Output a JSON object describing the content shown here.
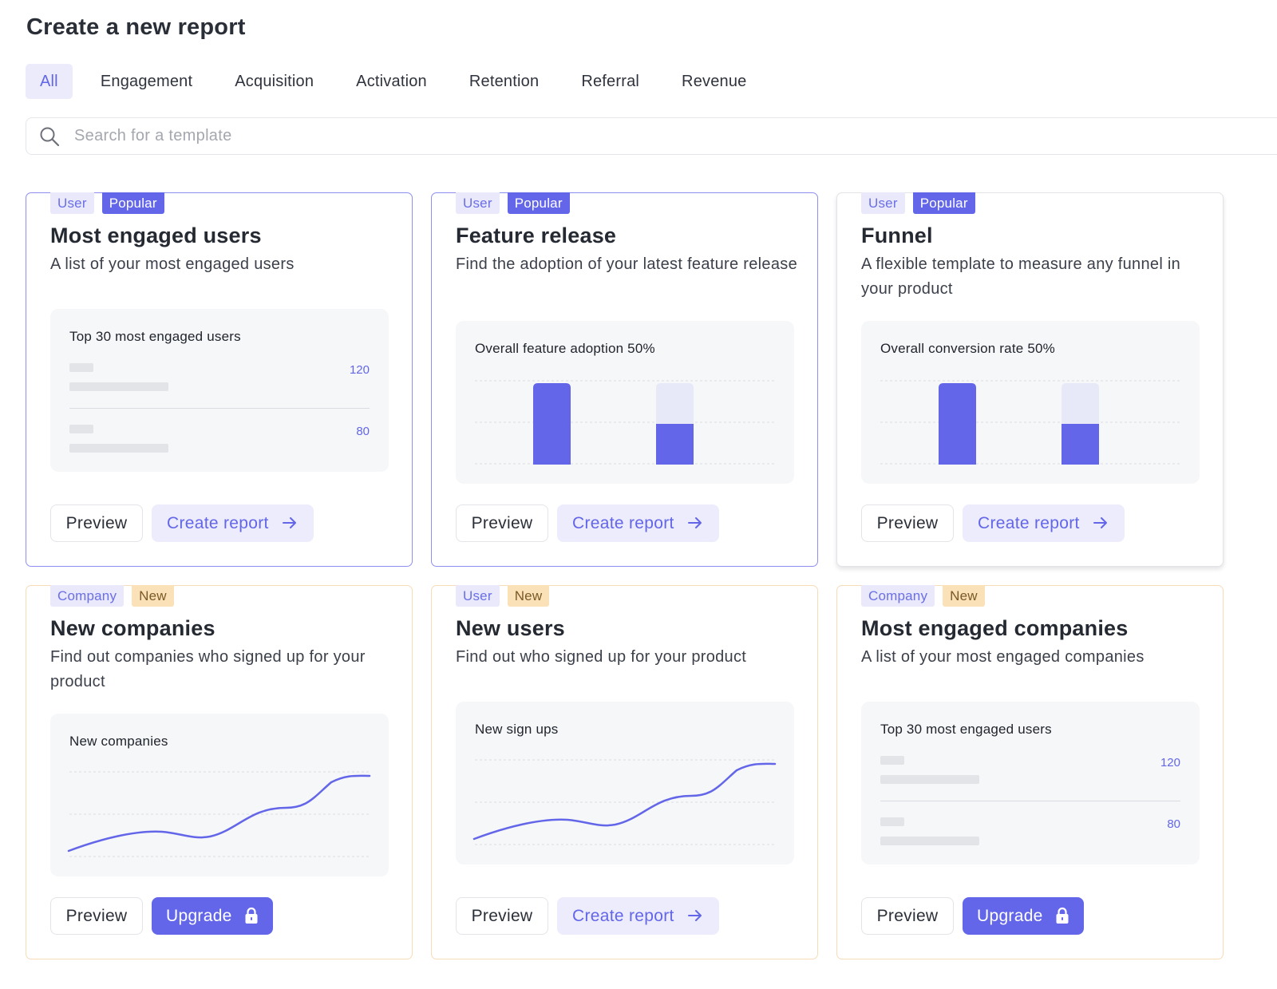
{
  "page_title": "Create a new report",
  "tabs": [
    "All",
    "Engagement",
    "Acquisition",
    "Activation",
    "Retention",
    "Referral",
    "Revenue"
  ],
  "active_tab": "All",
  "search": {
    "placeholder": "Search for a template"
  },
  "colors": {
    "accent": "#6366e8",
    "accent_light": "#ececfc",
    "new_border": "#f6dcb7",
    "new_tag": "#fae1b8"
  },
  "buttons": {
    "preview": "Preview",
    "create": "Create report",
    "upgrade": "Upgrade"
  },
  "cards": [
    {
      "tags": [
        "User",
        "Popular"
      ],
      "title": "Most engaged users",
      "description": "A list of your most engaged users",
      "preview_label": "Top 30 most engaged users",
      "preview_type": "list",
      "list_values": [
        "120",
        "80"
      ],
      "action": "create"
    },
    {
      "tags": [
        "User",
        "Popular"
      ],
      "title": "Feature release",
      "description": "Find the adoption of your latest feature release",
      "preview_label": "Overall feature adoption 50%",
      "preview_type": "bars",
      "bar_fill": [
        1.0,
        0.5
      ],
      "action": "create"
    },
    {
      "tags": [
        "User",
        "Popular"
      ],
      "title": "Funnel",
      "description": "A flexible template to measure any funnel in your product",
      "preview_label": "Overall conversion rate 50%",
      "preview_type": "bars",
      "bar_fill": [
        1.0,
        0.5
      ],
      "action": "create"
    },
    {
      "tags": [
        "Company",
        "New"
      ],
      "title": "New companies",
      "description": "Find out companies who signed up for your product",
      "preview_label": "New companies",
      "preview_type": "line",
      "action": "upgrade"
    },
    {
      "tags": [
        "User",
        "New"
      ],
      "title": "New users",
      "description": "Find out who signed up for your product",
      "preview_label": "New sign ups",
      "preview_type": "line",
      "action": "create"
    },
    {
      "tags": [
        "Company",
        "New"
      ],
      "title": "Most engaged companies",
      "description": "A list of your most engaged companies",
      "preview_label": "Top 30 most engaged users",
      "preview_type": "list",
      "list_values": [
        "120",
        "80"
      ],
      "action": "upgrade"
    }
  ]
}
